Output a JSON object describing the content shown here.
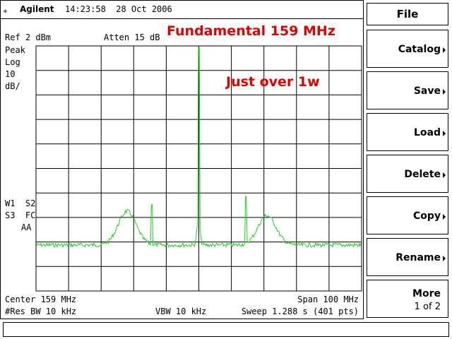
{
  "header": {
    "brand": "Agilent",
    "time": "14:23:58  28 Oct 2006"
  },
  "display": {
    "ref": "Ref 2 dBm",
    "atten": "Atten 15 dB",
    "detector": "Peak",
    "scale_type": "Log",
    "scale_value": "10",
    "scale_unit": "dB/",
    "status_1": "W1  S2",
    "status_2": "S3  FC",
    "status_3": "AA",
    "center": "Center 159 MHz",
    "span": "Span 100 MHz",
    "res_bw": "#Res BW 10 kHz",
    "vbw": "VBW 10 kHz",
    "sweep": "Sweep 1.288 s (401 pts)"
  },
  "annotations": [
    "Fundamental 159 MHz",
    "Just over 1w"
  ],
  "menu": {
    "title": "File",
    "buttons": [
      {
        "label": "Catalog"
      },
      {
        "label": "Save"
      },
      {
        "label": "Load"
      },
      {
        "label": "Delete"
      },
      {
        "label": "Copy"
      },
      {
        "label": "Rename"
      },
      {
        "label": "More",
        "sub": "1 of 2"
      }
    ]
  }
}
